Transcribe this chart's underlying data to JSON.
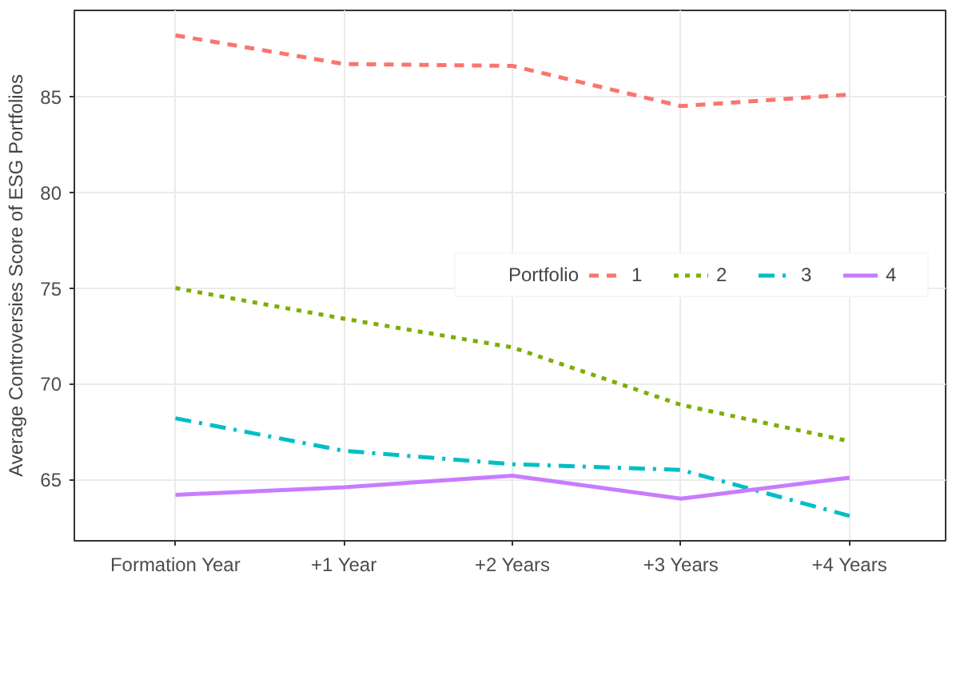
{
  "chart_data": {
    "type": "line",
    "ylabel": "Average Controversies Score of ESG Portfolios",
    "legend_title": "Portfolio",
    "categories": [
      "Formation Year",
      "+1 Year",
      "+2 Years",
      "+3 Years",
      "+4 Years"
    ],
    "series": [
      {
        "name": "1",
        "color": "#f8766d",
        "line_style": "dashed",
        "values": [
          88.2,
          86.7,
          86.6,
          84.5,
          85.1
        ]
      },
      {
        "name": "2",
        "color": "#7cae00",
        "line_style": "dotted",
        "values": [
          75.0,
          73.4,
          71.9,
          68.9,
          67.0
        ]
      },
      {
        "name": "3",
        "color": "#00bfc4",
        "line_style": "dashdot",
        "values": [
          68.2,
          66.5,
          65.8,
          65.5,
          63.1
        ]
      },
      {
        "name": "4",
        "color": "#c77cff",
        "line_style": "solid",
        "values": [
          64.2,
          64.6,
          65.2,
          64.0,
          65.1
        ]
      }
    ],
    "ylim": [
      61.8,
      89.5
    ],
    "yticks": [
      65,
      70,
      75,
      80,
      85
    ],
    "grid": true,
    "legend": "right",
    "marker": "none"
  }
}
